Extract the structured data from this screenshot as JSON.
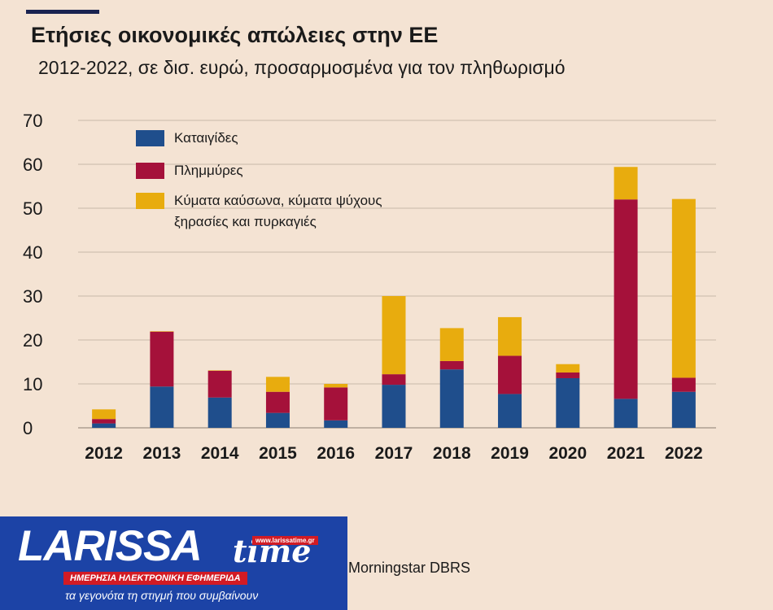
{
  "header": {
    "title": "Ετήσιες οικονομικές απώλειες στην ΕΕ",
    "subtitle": "2012-2022, σε δισ. ευρώ, προσαρμοσμένα για τον πληθωρισμό"
  },
  "source": "Morningstar DBRS",
  "logo": {
    "name": "LARISSA",
    "name_suffix": "time",
    "url": "www.larissatime.gr",
    "tagline": "ΗΜΕΡΗΣΙΑ ΗΛΕΚΤΡΟΝΙΚΗ ΕΦΗΜΕΡΙΔΑ",
    "slogan": "τα γεγονότα τη στιγμή που συμβαίνουν"
  },
  "colors": {
    "storms": "#1f4e8c",
    "floods": "#a5113a",
    "heat": "#e8ac0e",
    "grid": "#c9b8a8",
    "text": "#1a1a1a"
  },
  "chart_data": {
    "type": "bar",
    "stacked": true,
    "categories": [
      "2012",
      "2013",
      "2014",
      "2015",
      "2016",
      "2017",
      "2018",
      "2019",
      "2020",
      "2021",
      "2022"
    ],
    "series": [
      {
        "name": "Καταιγίδες",
        "color": "#1f4e8c",
        "values": [
          1,
          9.4,
          6.9,
          3.4,
          1.7,
          9.8,
          13.3,
          7.7,
          11.3,
          6.6,
          8.2
        ]
      },
      {
        "name": "Πλημμύρες",
        "color": "#a5113a",
        "values": [
          1,
          12.5,
          6.1,
          4.8,
          7.5,
          2.4,
          1.9,
          8.7,
          1.3,
          45.4,
          3.2
        ]
      },
      {
        "name": "Κύματα καύσωνα, κύματα ψύχους ξηρασίες και πυρκαγιές",
        "name_lines": [
          "Κύματα καύσωνα, κύματα ψύχους",
          "ξηρασίες και πυρκαγιές"
        ],
        "color": "#e8ac0e",
        "values": [
          2.2,
          0.1,
          0.1,
          3.4,
          0.8,
          17.8,
          7.5,
          8.8,
          1.9,
          7.4,
          40.7
        ]
      }
    ],
    "yticks": [
      0,
      10,
      20,
      30,
      40,
      50,
      60,
      70
    ],
    "ylim": [
      0,
      70
    ],
    "grid": true,
    "legend_position": "top-left"
  }
}
